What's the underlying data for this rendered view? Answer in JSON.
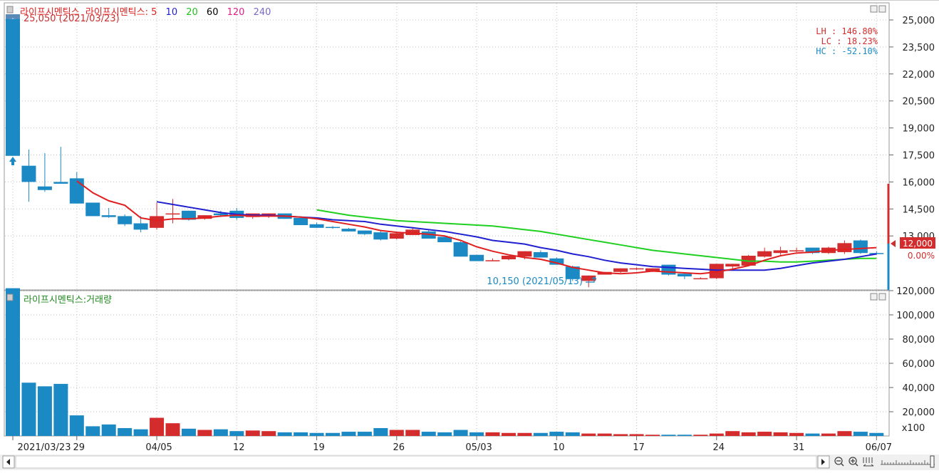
{
  "price_panel": {
    "legend_stock": "라이프시멘틱스",
    "legend_ma_prefix": "라이프시멘틱스:",
    "ma_labels": [
      "5",
      "10",
      "20",
      "60",
      "120",
      "240"
    ],
    "ma_colors": [
      "#e02020",
      "#2020d0",
      "#20d020",
      "#000000",
      "#e0208a",
      "#7b68c8"
    ],
    "max_note": "25,050 (2021/03/23)",
    "min_note": "10,150 (2021/05/13)",
    "lh": "LH : 146.80%",
    "lc": "LC :  18.23%",
    "hc": "HC : -52.10%",
    "current_price": "12,000",
    "current_pct": "0.00%",
    "side_tab": "호"
  },
  "volume_panel": {
    "legend": "라이프시멘틱스:거래량",
    "unit": "x100"
  },
  "x_axis": {
    "date_labels": [
      "2021/03/23",
      "29",
      "04/05",
      "12",
      "19",
      "26",
      "05/03",
      "10",
      "17",
      "24",
      "31",
      "06/07"
    ]
  },
  "chart_data": [
    {
      "type": "candlestick",
      "ylim": [
        10000,
        25950
      ],
      "yticks": [
        "25,000",
        "23,500",
        "22,000",
        "20,500",
        "19,000",
        "17,500",
        "16,000",
        "14,500",
        "13,000"
      ],
      "ytick_values": [
        25000,
        23500,
        22000,
        20500,
        19000,
        17500,
        16000,
        14500,
        13000
      ],
      "colors": {
        "up": "#d42c2c",
        "down": "#1b8ac4",
        "ma5": "#e02020",
        "ma10": "#2020d0",
        "ma20": "#20d020"
      },
      "candles": [
        {
          "o": 25050,
          "h": 25050,
          "c": 17450,
          "l": 17450
        },
        {
          "o": 16900,
          "h": 17800,
          "c": 16000,
          "l": 14900
        },
        {
          "o": 15750,
          "h": 17600,
          "c": 15550,
          "l": 15450
        },
        {
          "o": 16000,
          "h": 17950,
          "c": 15900,
          "l": 15900
        },
        {
          "o": 16200,
          "h": 16550,
          "c": 14800,
          "l": 14800
        },
        {
          "o": 14850,
          "h": 14850,
          "c": 14100,
          "l": 14100
        },
        {
          "o": 14150,
          "h": 14550,
          "c": 14050,
          "l": 14000
        },
        {
          "o": 14100,
          "h": 14200,
          "c": 13650,
          "l": 13550
        },
        {
          "o": 13700,
          "h": 14100,
          "c": 13350,
          "l": 13200
        },
        {
          "o": 13450,
          "h": 14850,
          "c": 14100,
          "l": 13350
        },
        {
          "o": 14250,
          "h": 15050,
          "c": 14250,
          "l": 13700
        },
        {
          "o": 14400,
          "h": 14400,
          "c": 13900,
          "l": 13850
        },
        {
          "o": 13950,
          "h": 14150,
          "c": 14150,
          "l": 13900
        },
        {
          "o": 14250,
          "h": 14400,
          "c": 14150,
          "l": 14050
        },
        {
          "o": 14400,
          "h": 14550,
          "c": 14000,
          "l": 13900
        },
        {
          "o": 14050,
          "h": 14250,
          "c": 14250,
          "l": 13950
        },
        {
          "o": 14100,
          "h": 14250,
          "c": 14250,
          "l": 14000
        },
        {
          "o": 14250,
          "h": 14250,
          "c": 13950,
          "l": 13950
        },
        {
          "o": 14000,
          "h": 14000,
          "c": 13600,
          "l": 13600
        },
        {
          "o": 13650,
          "h": 13750,
          "c": 13450,
          "l": 13450
        },
        {
          "o": 13500,
          "h": 13550,
          "c": 13450,
          "l": 13400
        },
        {
          "o": 13400,
          "h": 13450,
          "c": 13250,
          "l": 13250
        },
        {
          "o": 13300,
          "h": 13300,
          "c": 13100,
          "l": 13050
        },
        {
          "o": 13200,
          "h": 13300,
          "c": 12800,
          "l": 12750
        },
        {
          "o": 12850,
          "h": 13250,
          "c": 13150,
          "l": 12800
        },
        {
          "o": 13050,
          "h": 13500,
          "c": 13350,
          "l": 13050
        },
        {
          "o": 13250,
          "h": 13300,
          "c": 12850,
          "l": 12850
        },
        {
          "o": 12950,
          "h": 12950,
          "c": 12650,
          "l": 12650
        },
        {
          "o": 12650,
          "h": 12700,
          "c": 11850,
          "l": 11850
        },
        {
          "o": 11950,
          "h": 11950,
          "c": 11600,
          "l": 11600
        },
        {
          "o": 11650,
          "h": 11750,
          "c": 11650,
          "l": 11600
        },
        {
          "o": 11700,
          "h": 11900,
          "c": 11900,
          "l": 11650
        },
        {
          "o": 11850,
          "h": 12150,
          "c": 12150,
          "l": 11700
        },
        {
          "o": 12100,
          "h": 12200,
          "c": 11800,
          "l": 11800
        },
        {
          "o": 11750,
          "h": 11800,
          "c": 11400,
          "l": 11400
        },
        {
          "o": 11300,
          "h": 11350,
          "c": 10600,
          "l": 10500
        },
        {
          "o": 10500,
          "h": 10800,
          "c": 10800,
          "l": 10150
        },
        {
          "o": 10850,
          "h": 11000,
          "c": 11000,
          "l": 10850
        },
        {
          "o": 11000,
          "h": 11200,
          "c": 11200,
          "l": 10950
        },
        {
          "o": 11200,
          "h": 11250,
          "c": 11200,
          "l": 11100
        },
        {
          "o": 11050,
          "h": 11200,
          "c": 11200,
          "l": 11000
        },
        {
          "o": 11400,
          "h": 11400,
          "c": 10850,
          "l": 10800
        },
        {
          "o": 10900,
          "h": 10900,
          "c": 10750,
          "l": 10600
        },
        {
          "o": 10650,
          "h": 10700,
          "c": 10650,
          "l": 10600
        },
        {
          "o": 10650,
          "h": 11450,
          "c": 11450,
          "l": 10600
        },
        {
          "o": 11300,
          "h": 11450,
          "c": 11450,
          "l": 11150
        },
        {
          "o": 11350,
          "h": 11950,
          "c": 11900,
          "l": 11350
        },
        {
          "o": 11850,
          "h": 12350,
          "c": 12150,
          "l": 11800
        },
        {
          "o": 12050,
          "h": 12400,
          "c": 12200,
          "l": 11950
        },
        {
          "o": 12150,
          "h": 12350,
          "c": 12200,
          "l": 12100
        },
        {
          "o": 12350,
          "h": 12350,
          "c": 12050,
          "l": 12000
        },
        {
          "o": 12050,
          "h": 12400,
          "c": 12350,
          "l": 12000
        },
        {
          "o": 12100,
          "h": 12750,
          "c": 12600,
          "l": 12000
        },
        {
          "o": 12750,
          "h": 12800,
          "c": 12050,
          "l": 12000
        },
        {
          "o": 12050,
          "h": 12150,
          "c": 12000,
          "l": 11950
        }
      ],
      "ma5": [
        null,
        null,
        null,
        null,
        16050,
        15400,
        14950,
        14700,
        14000,
        13850,
        13950,
        13950,
        14000,
        14100,
        14150,
        14100,
        14100,
        14100,
        14050,
        13950,
        13800,
        13650,
        13500,
        13300,
        13200,
        13150,
        13100,
        13000,
        12750,
        12400,
        12150,
        11950,
        11800,
        11700,
        11500,
        11250,
        11100,
        10950,
        10900,
        10950,
        11050,
        11000,
        10950,
        10900,
        11000,
        11150,
        11350,
        11650,
        11900,
        12050,
        12100,
        12200,
        12250,
        12300,
        12350
      ],
      "ma10": [
        null,
        null,
        null,
        null,
        null,
        null,
        null,
        null,
        null,
        14900,
        14750,
        14600,
        14450,
        14300,
        14200,
        14150,
        14150,
        14100,
        14050,
        14000,
        13900,
        13850,
        13800,
        13650,
        13550,
        13450,
        13350,
        13250,
        13100,
        12950,
        12750,
        12650,
        12550,
        12350,
        12200,
        12000,
        11850,
        11650,
        11500,
        11400,
        11300,
        11250,
        11200,
        11150,
        11100,
        11100,
        11100,
        11100,
        11200,
        11350,
        11500,
        11600,
        11700,
        11850,
        12000
      ],
      "ma20": [
        null,
        null,
        null,
        null,
        null,
        null,
        null,
        null,
        null,
        null,
        null,
        null,
        null,
        null,
        null,
        null,
        null,
        null,
        null,
        14450,
        14300,
        14150,
        14050,
        13950,
        13850,
        13800,
        13750,
        13700,
        13650,
        13600,
        13550,
        13450,
        13350,
        13250,
        13100,
        12950,
        12800,
        12650,
        12500,
        12350,
        12200,
        12100,
        12000,
        11900,
        11800,
        11700,
        11600,
        11600,
        11550,
        11550,
        11600,
        11650,
        11700,
        11750,
        11750
      ],
      "max_note_index": 0,
      "min_note_index": 36
    },
    {
      "type": "bar",
      "title": "라이프시멘틱스:거래량",
      "ylim": [
        0,
        120000
      ],
      "yticks": [
        "120,000",
        "100,000",
        "80,000",
        "60,000",
        "40,000",
        "20,000"
      ],
      "ytick_values": [
        120000,
        100000,
        80000,
        60000,
        40000,
        20000
      ],
      "values": [
        122000,
        44000,
        41000,
        43000,
        17000,
        8000,
        9500,
        6500,
        5500,
        15000,
        10500,
        6000,
        5000,
        5500,
        4000,
        4500,
        4000,
        3000,
        3000,
        2500,
        2500,
        3500,
        3500,
        6500,
        5000,
        5000,
        3500,
        3000,
        5000,
        3000,
        3000,
        2500,
        2500,
        2500,
        3500,
        3000,
        2000,
        2000,
        1500,
        1500,
        1000,
        1000,
        1000,
        1000,
        2000,
        4000,
        3000,
        3500,
        3000,
        2500,
        2000,
        2000,
        4000,
        3500,
        2500
      ]
    }
  ]
}
